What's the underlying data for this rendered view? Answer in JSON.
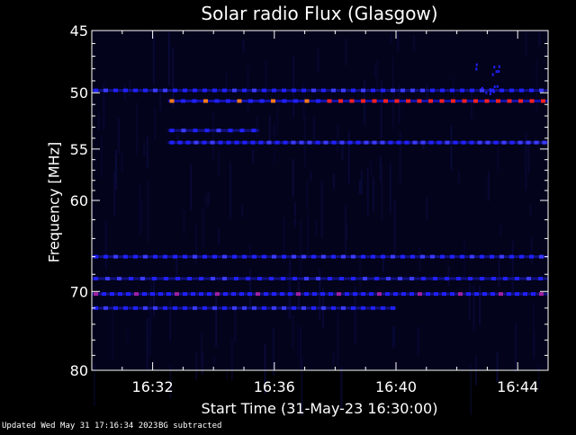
{
  "chart_data": {
    "type": "heatmap",
    "title": "Solar radio Flux (Glasgow)",
    "xlabel": "Start Time (31-May-23 16:30:00)",
    "ylabel": "Frequency [MHz]",
    "x_axis": {
      "unit": "minutes after 16:30:00",
      "range": [
        0,
        15
      ],
      "tick_labels": [
        "16:32",
        "16:36",
        "16:40",
        "16:44"
      ],
      "tick_values": [
        2,
        6,
        10,
        14
      ]
    },
    "y_axis": {
      "scale": "log",
      "direction": "inverted",
      "range": [
        45,
        80
      ],
      "tick_labels": [
        "45",
        "50",
        "55",
        "60",
        "70",
        "80"
      ],
      "tick_values": [
        45,
        50,
        55,
        60,
        70,
        80
      ]
    },
    "background": "#000000",
    "colors": {
      "low": "#000033",
      "medium": "#2020ff",
      "high": "#ff2020",
      "peak": "#ff7a1a",
      "mixed": "#a020a0"
    },
    "bands": [
      {
        "freq": 50.7,
        "x_start": 2.5,
        "x_end": 15.0,
        "level": "high"
      },
      {
        "freq": 49.8,
        "x_start": 0.0,
        "x_end": 15.0,
        "level": "medium"
      },
      {
        "freq": 53.3,
        "x_start": 2.5,
        "x_end": 5.5,
        "level": "medium"
      },
      {
        "freq": 54.4,
        "x_start": 2.5,
        "x_end": 15.0,
        "level": "medium"
      },
      {
        "freq": 66.0,
        "x_start": 0.0,
        "x_end": 15.0,
        "level": "medium"
      },
      {
        "freq": 68.5,
        "x_start": 0.0,
        "x_end": 15.0,
        "level": "medium"
      },
      {
        "freq": 70.3,
        "x_start": 0.0,
        "x_end": 15.0,
        "level": "mixed"
      },
      {
        "freq": 72.0,
        "x_start": 0.0,
        "x_end": 10.0,
        "level": "medium"
      }
    ]
  },
  "footer": {
    "updated": "Updated Wed May 31 17:16:34 2023",
    "bg_note": "BG subtracted"
  }
}
